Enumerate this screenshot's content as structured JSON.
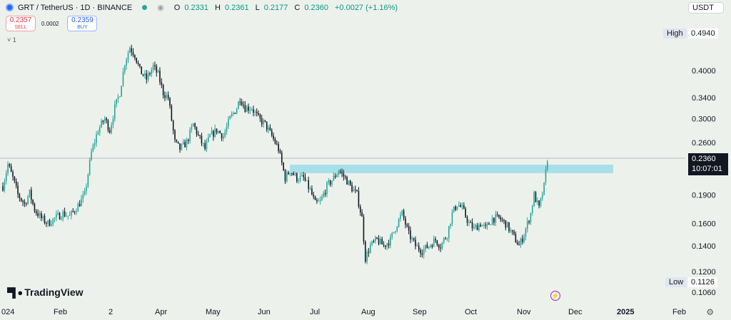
{
  "legend": {
    "symbol": "GRT / TetherUS · 1D · BINANCE",
    "open_label": "O",
    "open": "0.2331",
    "high_label": "H",
    "high": "0.2361",
    "low_label": "L",
    "low": "0.2177",
    "close_label": "C",
    "close": "0.2360",
    "change": "+0.0027 (+1.16%)"
  },
  "trade": {
    "sell_price": "0.2357",
    "sell_label": "SELL",
    "spread": "0.0002",
    "buy_price": "0.2359",
    "buy_label": "BUY"
  },
  "indicator_toggle": "˅ 1",
  "currency": "USDT",
  "price_tag": {
    "price": "0.2360",
    "countdown": "10:07:01"
  },
  "high_tag": {
    "label": "High",
    "value": "0.4940"
  },
  "low_tag": {
    "label": "Low",
    "value": "0.1126"
  },
  "brand": "TradingView",
  "colors": {
    "up": "#26a69a",
    "down": "#131722",
    "zone": "#a8e0ea",
    "background": "#edf1ec"
  },
  "chart_data": {
    "type": "candlestick",
    "symbol": "GRT/USDT",
    "interval": "1D",
    "y_scale": "log",
    "y_ticks": [
      "0.4000",
      "0.3400",
      "0.3000",
      "0.2600",
      "0.1900",
      "0.1600",
      "0.1400",
      "0.1200",
      "0.1060"
    ],
    "x_ticks": [
      "024",
      "Feb",
      "2",
      "Apr",
      "May",
      "Jun",
      "Jul",
      "Aug",
      "Sep",
      "Oct",
      "Nov",
      "Dec",
      "2025",
      "Feb"
    ],
    "high": 0.494,
    "low": 0.1126,
    "last": 0.236,
    "zone": {
      "from": "Jun 15",
      "to": "Dec 25",
      "low": 0.222,
      "high": 0.231
    },
    "trend_points": [
      {
        "x": "Jan 1",
        "y": 0.2
      },
      {
        "x": "Jan 4",
        "y": 0.228
      },
      {
        "x": "Jan 7",
        "y": 0.21
      },
      {
        "x": "Jan 10",
        "y": 0.19
      },
      {
        "x": "Jan 14",
        "y": 0.18
      },
      {
        "x": "Jan 17",
        "y": 0.192
      },
      {
        "x": "Jan 20",
        "y": 0.174
      },
      {
        "x": "Jan 24",
        "y": 0.165
      },
      {
        "x": "Jan 28",
        "y": 0.16
      },
      {
        "x": "Feb 1",
        "y": 0.165
      },
      {
        "x": "Feb 6",
        "y": 0.17
      },
      {
        "x": "Feb 10",
        "y": 0.167
      },
      {
        "x": "Feb 15",
        "y": 0.178
      },
      {
        "x": "Feb 19",
        "y": 0.19
      },
      {
        "x": "Feb 23",
        "y": 0.245
      },
      {
        "x": "Feb 27",
        "y": 0.28
      },
      {
        "x": "Mar 2",
        "y": 0.3
      },
      {
        "x": "Mar 5",
        "y": 0.28
      },
      {
        "x": "Mar 8",
        "y": 0.32
      },
      {
        "x": "Mar 11",
        "y": 0.35
      },
      {
        "x": "Mar 14",
        "y": 0.42
      },
      {
        "x": "Mar 17",
        "y": 0.46
      },
      {
        "x": "Mar 20",
        "y": 0.44
      },
      {
        "x": "Mar 23",
        "y": 0.4
      },
      {
        "x": "Mar 27",
        "y": 0.38
      },
      {
        "x": "Mar 31",
        "y": 0.41
      },
      {
        "x": "Apr 3",
        "y": 0.39
      },
      {
        "x": "Apr 6",
        "y": 0.35
      },
      {
        "x": "Apr 9",
        "y": 0.34
      },
      {
        "x": "Apr 13",
        "y": 0.26
      },
      {
        "x": "Apr 16",
        "y": 0.25
      },
      {
        "x": "Apr 20",
        "y": 0.26
      },
      {
        "x": "Apr 24",
        "y": 0.29
      },
      {
        "x": "Apr 27",
        "y": 0.27
      },
      {
        "x": "May 1",
        "y": 0.25
      },
      {
        "x": "May 4",
        "y": 0.27
      },
      {
        "x": "May 8",
        "y": 0.28
      },
      {
        "x": "May 12",
        "y": 0.27
      },
      {
        "x": "May 16",
        "y": 0.3
      },
      {
        "x": "May 20",
        "y": 0.32
      },
      {
        "x": "May 22",
        "y": 0.34
      },
      {
        "x": "May 25",
        "y": 0.32
      },
      {
        "x": "May 29",
        "y": 0.32
      },
      {
        "x": "Jun 2",
        "y": 0.3
      },
      {
        "x": "Jun 6",
        "y": 0.29
      },
      {
        "x": "Jun 10",
        "y": 0.27
      },
      {
        "x": "Jun 14",
        "y": 0.25
      },
      {
        "x": "Jun 18",
        "y": 0.21
      },
      {
        "x": "Jun 21",
        "y": 0.22
      },
      {
        "x": "Jun 25",
        "y": 0.21
      },
      {
        "x": "Jun 29",
        "y": 0.21
      },
      {
        "x": "Jul 3",
        "y": 0.195
      },
      {
        "x": "Jul 6",
        "y": 0.18
      },
      {
        "x": "Jul 9",
        "y": 0.182
      },
      {
        "x": "Jul 13",
        "y": 0.2
      },
      {
        "x": "Jul 17",
        "y": 0.21
      },
      {
        "x": "Jul 20",
        "y": 0.22
      },
      {
        "x": "Jul 24",
        "y": 0.21
      },
      {
        "x": "Jul 27",
        "y": 0.2
      },
      {
        "x": "Jul 31",
        "y": 0.19
      },
      {
        "x": "Aug 3",
        "y": 0.165
      },
      {
        "x": "Aug 5",
        "y": 0.13
      },
      {
        "x": "Aug 8",
        "y": 0.14
      },
      {
        "x": "Aug 12",
        "y": 0.145
      },
      {
        "x": "Aug 16",
        "y": 0.14
      },
      {
        "x": "Aug 20",
        "y": 0.145
      },
      {
        "x": "Aug 24",
        "y": 0.16
      },
      {
        "x": "Aug 27",
        "y": 0.17
      },
      {
        "x": "Aug 31",
        "y": 0.15
      },
      {
        "x": "Sep 4",
        "y": 0.14
      },
      {
        "x": "Sep 8",
        "y": 0.136
      },
      {
        "x": "Sep 12",
        "y": 0.14
      },
      {
        "x": "Sep 16",
        "y": 0.145
      },
      {
        "x": "Sep 19",
        "y": 0.14
      },
      {
        "x": "Sep 23",
        "y": 0.15
      },
      {
        "x": "Sep 26",
        "y": 0.17
      },
      {
        "x": "Sep 29",
        "y": 0.18
      },
      {
        "x": "Oct 2",
        "y": 0.175
      },
      {
        "x": "Oct 6",
        "y": 0.16
      },
      {
        "x": "Oct 9",
        "y": 0.155
      },
      {
        "x": "Oct 13",
        "y": 0.16
      },
      {
        "x": "Oct 16",
        "y": 0.155
      },
      {
        "x": "Oct 20",
        "y": 0.165
      },
      {
        "x": "Oct 24",
        "y": 0.165
      },
      {
        "x": "Oct 28",
        "y": 0.16
      },
      {
        "x": "Nov 1",
        "y": 0.15
      },
      {
        "x": "Nov 5",
        "y": 0.14
      },
      {
        "x": "Nov 8",
        "y": 0.15
      },
      {
        "x": "Nov 12",
        "y": 0.17
      },
      {
        "x": "Nov 14",
        "y": 0.19
      },
      {
        "x": "Nov 17",
        "y": 0.175
      },
      {
        "x": "Nov 20",
        "y": 0.2
      },
      {
        "x": "Nov 22",
        "y": 0.236
      }
    ]
  }
}
